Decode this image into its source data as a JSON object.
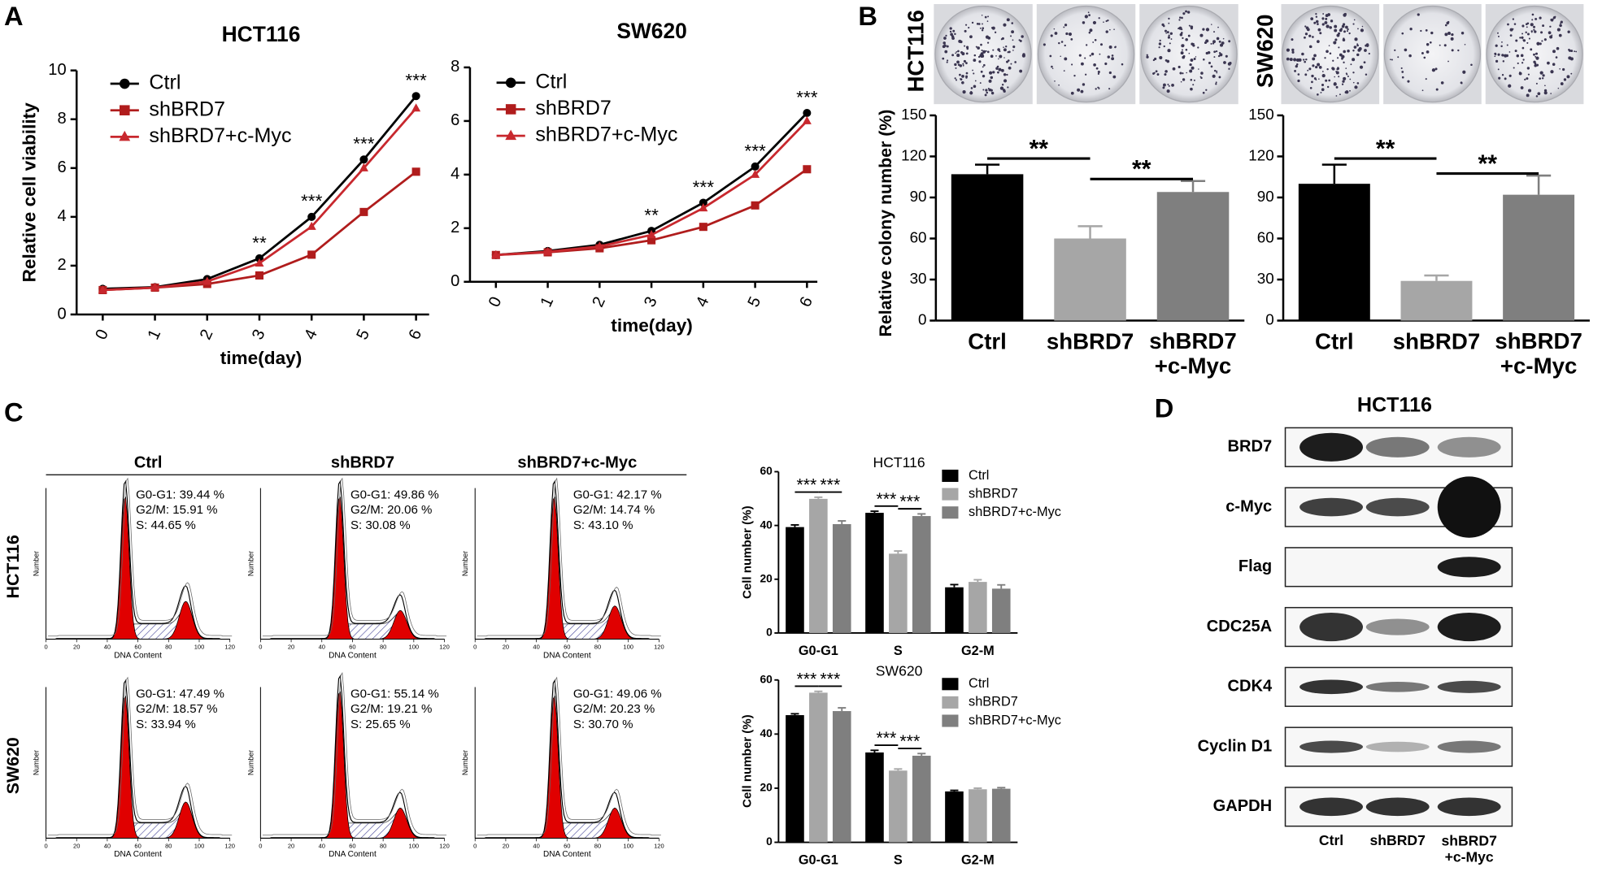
{
  "panels": [
    "A",
    "B",
    "C",
    "D"
  ],
  "chart_data": [
    {
      "type": "line",
      "title": "HCT116",
      "xlabel": "time(day)",
      "ylabel": "Relative cell viability",
      "x": [
        0,
        1,
        2,
        3,
        4,
        5,
        6
      ],
      "xlim": [
        -0.5,
        6.25
      ],
      "xticks": [
        0,
        1,
        2,
        3,
        4,
        5,
        6
      ],
      "ylim": [
        0,
        10
      ],
      "yticks": [
        0,
        2,
        4,
        6,
        8,
        10
      ],
      "series": [
        {
          "name": "Ctrl",
          "color": "#000000",
          "marker": "circle",
          "values": [
            1.05,
            1.12,
            1.45,
            2.3,
            4.0,
            6.35,
            8.95
          ]
        },
        {
          "name": "shBRD7",
          "color": "#b01c1c",
          "marker": "square",
          "values": [
            1.0,
            1.1,
            1.25,
            1.6,
            2.45,
            4.2,
            5.85
          ]
        },
        {
          "name": "shBRD7+c-Myc",
          "color": "#c8282e",
          "marker": "triangle",
          "values": [
            1.0,
            1.1,
            1.35,
            2.1,
            3.6,
            6.0,
            8.45
          ]
        }
      ],
      "annotations": [
        {
          "x": 3,
          "text": "**"
        },
        {
          "x": 4,
          "text": "***"
        },
        {
          "x": 5,
          "text": "***"
        },
        {
          "x": 6,
          "text": "***"
        }
      ]
    },
    {
      "type": "line",
      "title": "SW620",
      "xlabel": "time(day)",
      "x": [
        0,
        1,
        2,
        3,
        4,
        5,
        6
      ],
      "xlim": [
        -0.5,
        6.2
      ],
      "xticks": [
        0,
        1,
        2,
        3,
        4,
        5,
        6
      ],
      "ylim": [
        0,
        8
      ],
      "yticks": [
        0,
        2,
        4,
        6,
        8
      ],
      "series": [
        {
          "name": "Ctrl",
          "color": "#000000",
          "marker": "circle",
          "values": [
            1.0,
            1.15,
            1.38,
            1.9,
            2.95,
            4.3,
            6.3
          ]
        },
        {
          "name": "shBRD7",
          "color": "#b01c1c",
          "marker": "square",
          "values": [
            1.0,
            1.1,
            1.25,
            1.55,
            2.05,
            2.85,
            4.2
          ]
        },
        {
          "name": "shBRD7+c-Myc",
          "color": "#c8282e",
          "marker": "triangle",
          "values": [
            1.0,
            1.12,
            1.32,
            1.75,
            2.75,
            4.0,
            6.0
          ]
        }
      ],
      "annotations": [
        {
          "x": 3,
          "text": "**"
        },
        {
          "x": 4,
          "text": "***"
        },
        {
          "x": 5,
          "text": "***"
        },
        {
          "x": 6,
          "text": "***"
        }
      ]
    },
    {
      "type": "bar",
      "title": "HCT116",
      "ylabel": "Relative colony number (%)",
      "categories": [
        "Ctrl",
        "shBRD7",
        "shBRD7\n+c-Myc"
      ],
      "values": [
        107,
        60,
        94
      ],
      "errors": [
        7,
        9,
        8
      ],
      "colors": [
        "#000000",
        "#a6a6a6",
        "#7f7f7f"
      ],
      "ylim": [
        0,
        150
      ],
      "yticks": [
        0,
        30,
        60,
        90,
        120,
        150
      ],
      "annotations": [
        {
          "from": 0,
          "to": 1,
          "text": "**"
        },
        {
          "from": 1,
          "to": 2,
          "text": "**"
        }
      ]
    },
    {
      "type": "bar",
      "title": "SW620",
      "categories": [
        "Ctrl",
        "shBRD7",
        "shBRD7\n+c-Myc"
      ],
      "values": [
        100,
        29,
        92
      ],
      "errors": [
        14,
        4,
        14
      ],
      "colors": [
        "#000000",
        "#a6a6a6",
        "#7f7f7f"
      ],
      "ylim": [
        0,
        150
      ],
      "yticks": [
        0,
        30,
        60,
        90,
        120,
        150
      ],
      "annotations": [
        {
          "from": 0,
          "to": 1,
          "text": "**"
        },
        {
          "from": 1,
          "to": 2,
          "text": "**"
        }
      ]
    },
    {
      "type": "grouped_bar",
      "title": "HCT116",
      "ylabel": "Cell number (%)",
      "categories": [
        "G0-G1",
        "S",
        "G2-M"
      ],
      "ylim": [
        0,
        60
      ],
      "yticks": [
        0,
        20,
        40,
        60
      ],
      "series": [
        {
          "name": "Ctrl",
          "color": "#000000",
          "values": [
            39.4,
            44.7,
            17.0
          ],
          "errors": [
            0.8,
            0.6,
            1.0
          ]
        },
        {
          "name": "shBRD7",
          "color": "#a6a6a6",
          "values": [
            49.9,
            29.5,
            19.0
          ],
          "errors": [
            0.6,
            1.0,
            0.8
          ]
        },
        {
          "name": "shBRD7+c-Myc",
          "color": "#7f7f7f",
          "values": [
            40.5,
            43.5,
            16.5
          ],
          "errors": [
            1.2,
            0.8,
            1.4
          ]
        }
      ],
      "annotations": [
        {
          "category": 0,
          "from": 0,
          "to": 1,
          "text": "***"
        },
        {
          "category": 0,
          "from": 1,
          "to": 2,
          "text": "***"
        },
        {
          "category": 1,
          "from": 0,
          "to": 1,
          "text": "***"
        },
        {
          "category": 1,
          "from": 1,
          "to": 2,
          "text": "***"
        }
      ]
    },
    {
      "type": "grouped_bar",
      "title": "SW620",
      "ylabel": "Cell number (%)",
      "categories": [
        "G0-G1",
        "S",
        "G2-M"
      ],
      "ylim": [
        0,
        60
      ],
      "yticks": [
        0,
        20,
        40,
        60
      ],
      "series": [
        {
          "name": "Ctrl",
          "color": "#000000",
          "values": [
            47.0,
            33.2,
            18.8
          ],
          "errors": [
            0.5,
            0.8,
            0.4
          ]
        },
        {
          "name": "shBRD7",
          "color": "#a6a6a6",
          "values": [
            55.3,
            26.5,
            19.6
          ],
          "errors": [
            0.5,
            0.6,
            0.4
          ]
        },
        {
          "name": "shBRD7+c-Myc",
          "color": "#7f7f7f",
          "values": [
            48.5,
            32.0,
            19.8
          ],
          "errors": [
            1.2,
            0.8,
            0.4
          ]
        }
      ],
      "annotations": [
        {
          "category": 0,
          "from": 0,
          "to": 1,
          "text": "***"
        },
        {
          "category": 0,
          "from": 1,
          "to": 2,
          "text": "***"
        },
        {
          "category": 1,
          "from": 0,
          "to": 1,
          "text": "***"
        },
        {
          "category": 1,
          "from": 1,
          "to": 2,
          "text": "***"
        }
      ]
    }
  ],
  "flow": {
    "columns": [
      "Ctrl",
      "shBRD7",
      "shBRD7+c-Myc"
    ],
    "rows": [
      "HCT116",
      "SW620"
    ],
    "xlabel": "DNA Content",
    "ylabel": "Number",
    "xticks": [
      "0",
      "20",
      "40",
      "60",
      "80",
      "100",
      "120"
    ],
    "cells": [
      [
        [
          "G0-G1: 39.44 %",
          "G2/M: 15.91 %",
          "S: 44.65 %"
        ],
        [
          "G0-G1: 49.86 %",
          "G2/M: 20.06 %",
          "S: 30.08 %"
        ],
        [
          "G0-G1: 42.17 %",
          "G2/M: 14.74 %",
          "S: 43.10 %"
        ]
      ],
      [
        [
          "G0-G1: 47.49 %",
          "G2/M: 18.57 %",
          "S: 33.94 %"
        ],
        [
          "G0-G1: 55.14 %",
          "G2/M: 19.21 %",
          "S: 25.65 %"
        ],
        [
          "G0-G1: 49.06 %",
          "G2/M: 20.23 %",
          "S: 30.70 %"
        ]
      ]
    ]
  },
  "blot": {
    "title": "HCT116",
    "proteins": [
      "BRD7",
      "c-Myc",
      "Flag",
      "CDC25A",
      "CDK4",
      "Cyclin D1",
      "GAPDH"
    ],
    "lanes": [
      "Ctrl",
      "shBRD7",
      "shBRD7\n+c-Myc"
    ]
  }
}
